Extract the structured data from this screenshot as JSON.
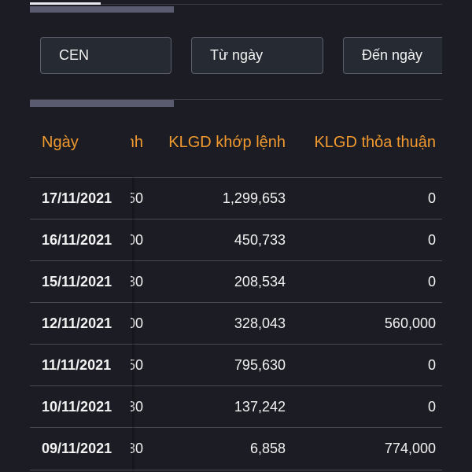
{
  "filters": {
    "stock": "CEN",
    "from_date": "Từ ngày",
    "to_date": "Đến ngày"
  },
  "table": {
    "headers": {
      "date": "Ngày",
      "partial": "nh",
      "match_volume": "KLGD khớp lệnh",
      "deal_volume": "KLGD thỏa thuận"
    },
    "rows": [
      {
        "date": "17/11/2021",
        "partial": "50",
        "match_volume": "1,299,653",
        "deal_volume": "0"
      },
      {
        "date": "16/11/2021",
        "partial": "00",
        "match_volume": "450,733",
        "deal_volume": "0"
      },
      {
        "date": "15/11/2021",
        "partial": "30",
        "match_volume": "208,534",
        "deal_volume": "0"
      },
      {
        "date": "12/11/2021",
        "partial": "00",
        "match_volume": "328,043",
        "deal_volume": "560,000"
      },
      {
        "date": "11/11/2021",
        "partial": "50",
        "match_volume": "795,630",
        "deal_volume": "0"
      },
      {
        "date": "10/11/2021",
        "partial": "30",
        "match_volume": "137,242",
        "deal_volume": "0"
      },
      {
        "date": "09/11/2021",
        "partial": "30",
        "match_volume": "6,858",
        "deal_volume": "774,000"
      }
    ]
  },
  "colors": {
    "background": "#1c1c24",
    "header_text": "#f29a2e",
    "cell_text": "#f2f2f2"
  }
}
